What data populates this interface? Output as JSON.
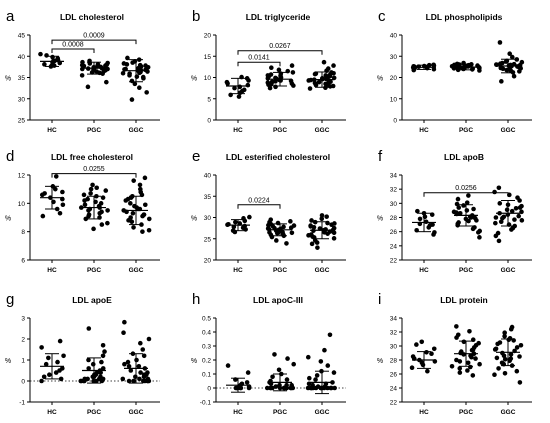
{
  "figure": {
    "group_labels": [
      "HC",
      "PGC",
      "GGC"
    ]
  },
  "chart_data": [
    {
      "type": "scatter",
      "letter": "a",
      "title": "LDL cholesterol",
      "ylabel": "%",
      "ylim": [
        25,
        45
      ],
      "yticks": [
        25,
        30,
        35,
        40,
        45
      ],
      "categories": [
        "HC",
        "PGC",
        "GGC"
      ],
      "summary": [
        {
          "group": "HC",
          "mean": 38.8,
          "sd": 1.2
        },
        {
          "group": "PGC",
          "mean": 37.2,
          "sd": 1.4
        },
        {
          "group": "GGC",
          "mean": 36.6,
          "sd": 2.6
        }
      ],
      "points": [
        [
          38.1,
          39.5,
          38.9,
          37.6,
          40.2,
          38.4,
          39.1,
          37.9,
          39.8,
          38.6,
          40.5,
          37.8,
          38.9
        ],
        [
          37.2,
          36.5,
          38.1,
          37.9,
          36.8,
          35.9,
          37.5,
          38.6,
          36.2,
          37.0,
          37.8,
          36.9,
          38.3,
          37.4,
          35.5,
          36.7,
          37.1,
          38.9,
          37.6,
          36.4,
          37.3,
          32.8,
          33.9,
          38.0,
          37.7,
          36.1,
          37.0,
          38.4
        ],
        [
          36.9,
          35.2,
          38.5,
          37.6,
          34.8,
          36.1,
          39.2,
          37.0,
          33.5,
          36.6,
          38.1,
          35.9,
          37.4,
          32.6,
          36.3,
          37.8,
          34.2,
          36.8,
          38.8,
          35.5,
          37.2,
          36.0,
          29.8,
          31.5,
          39.6,
          36.4,
          37.9,
          35.1,
          38.3,
          36.7
        ]
      ],
      "comparisons": [
        {
          "from": "HC",
          "to": "PGC",
          "p": "0.0008",
          "y": 41.7
        },
        {
          "from": "HC",
          "to": "GGC",
          "p": "0.0009",
          "y": 43.8
        }
      ]
    },
    {
      "type": "scatter",
      "letter": "b",
      "title": "LDL triglyceride",
      "ylabel": "%",
      "ylim": [
        0,
        20
      ],
      "yticks": [
        0,
        5,
        10,
        15,
        20
      ],
      "categories": [
        "HC",
        "PGC",
        "GGC"
      ],
      "summary": [
        {
          "group": "HC",
          "mean": 8.0,
          "sd": 1.8
        },
        {
          "group": "PGC",
          "mean": 9.6,
          "sd": 1.6
        },
        {
          "group": "GGC",
          "mean": 9.5,
          "sd": 1.8
        }
      ],
      "points": [
        [
          6.4,
          8.9,
          7.5,
          9.8,
          5.9,
          8.2,
          10.1,
          7.1,
          8.6,
          6.8,
          9.3,
          7.8,
          5.5
        ],
        [
          9.1,
          10.5,
          8.3,
          11.2,
          9.8,
          8.9,
          10.9,
          9.4,
          7.8,
          10.2,
          9.6,
          8.6,
          11.8,
          9.0,
          10.7,
          8.1,
          9.9,
          12.3,
          9.3,
          8.8,
          10.4,
          9.7,
          7.5,
          11.5,
          8.4,
          10.0,
          9.2,
          12.8
        ],
        [
          9.5,
          8.2,
          10.8,
          9.1,
          11.6,
          8.7,
          10.3,
          9.8,
          7.6,
          12.1,
          9.3,
          10.6,
          8.5,
          9.9,
          11.2,
          7.9,
          10.1,
          9.0,
          13.6,
          8.9,
          10.5,
          9.6,
          12.8,
          8.3,
          9.4,
          10.9,
          8.0,
          9.7,
          11.0,
          7.4
        ]
      ],
      "comparisons": [
        {
          "from": "HC",
          "to": "PGC",
          "p": "0.0141",
          "y": 13.6
        },
        {
          "from": "HC",
          "to": "GGC",
          "p": "0.0267",
          "y": 16.3
        }
      ]
    },
    {
      "type": "scatter",
      "letter": "c",
      "title": "LDL phospholipids",
      "ylabel": "%",
      "ylim": [
        0,
        40
      ],
      "yticks": [
        0,
        10,
        20,
        30,
        40
      ],
      "categories": [
        "HC",
        "PGC",
        "GGC"
      ],
      "summary": [
        {
          "group": "HC",
          "mean": 24.8,
          "sd": 1.0
        },
        {
          "group": "PGC",
          "mean": 24.9,
          "sd": 1.3
        },
        {
          "group": "GGC",
          "mean": 25.4,
          "sd": 3.2
        }
      ],
      "points": [
        [
          24.6,
          25.4,
          23.9,
          25.8,
          24.2,
          25.1,
          26.0,
          24.4,
          25.6,
          23.5,
          24.9,
          25.3,
          24.7
        ],
        [
          24.8,
          25.6,
          24.1,
          25.9,
          24.5,
          25.2,
          26.4,
          23.8,
          25.0,
          24.7,
          26.1,
          24.3,
          25.5,
          23.6,
          24.9,
          26.8,
          25.3,
          24.6,
          23.3,
          25.7,
          24.4,
          25.1,
          26.2,
          24.0,
          25.4,
          24.2,
          25.8,
          24.9
        ],
        [
          25.3,
          27.2,
          23.5,
          26.1,
          24.8,
          28.5,
          22.9,
          25.9,
          26.8,
          24.1,
          29.6,
          25.0,
          23.2,
          26.5,
          24.5,
          27.8,
          25.6,
          18.2,
          20.6,
          36.5,
          31.2,
          24.9,
          26.3,
          23.8,
          27.5,
          25.2,
          22.4,
          26.0,
          24.3,
          25.8
        ]
      ],
      "comparisons": []
    },
    {
      "type": "scatter",
      "letter": "d",
      "title": "LDL free cholesterol",
      "ylabel": "%",
      "ylim": [
        6,
        12
      ],
      "yticks": [
        6,
        8,
        10,
        12
      ],
      "categories": [
        "HC",
        "PGC",
        "GGC"
      ],
      "summary": [
        {
          "group": "HC",
          "mean": 10.4,
          "sd": 0.8
        },
        {
          "group": "PGC",
          "mean": 9.7,
          "sd": 0.8
        },
        {
          "group": "GGC",
          "mean": 9.5,
          "sd": 1.0
        }
      ],
      "points": [
        [
          10.1,
          10.8,
          9.6,
          11.2,
          10.4,
          9.3,
          11.9,
          10.6,
          9.9,
          10.3,
          11.0,
          9.1,
          10.7
        ],
        [
          9.7,
          10.4,
          9.1,
          10.9,
          9.5,
          10.2,
          8.6,
          9.9,
          10.6,
          9.3,
          11.1,
          9.8,
          8.2,
          10.0,
          9.4,
          10.7,
          9.6,
          8.9,
          11.3,
          9.2,
          10.3,
          9.0,
          8.5,
          10.1,
          9.7,
          11.0,
          9.5,
          10.5
        ],
        [
          9.6,
          8.7,
          10.5,
          9.2,
          11.0,
          8.3,
          9.9,
          10.2,
          9.0,
          11.6,
          8.8,
          9.4,
          10.8,
          9.7,
          8.1,
          10.3,
          9.1,
          11.3,
          8.5,
          9.8,
          10.6,
          9.3,
          8.0,
          10.0,
          9.5,
          11.8,
          8.9,
          9.6,
          10.4,
          9.2
        ]
      ],
      "comparisons": [
        {
          "from": "HC",
          "to": "GGC",
          "p": "0.0255",
          "y": 12.1
        }
      ]
    },
    {
      "type": "scatter",
      "letter": "e",
      "title": "LDL esterified cholesterol",
      "ylabel": "%",
      "ylim": [
        20,
        40
      ],
      "yticks": [
        20,
        25,
        30,
        35,
        40
      ],
      "categories": [
        "HC",
        "PGC",
        "GGC"
      ],
      "summary": [
        {
          "group": "HC",
          "mean": 28.2,
          "sd": 1.3
        },
        {
          "group": "PGC",
          "mean": 27.1,
          "sd": 1.4
        },
        {
          "group": "GGC",
          "mean": 27.0,
          "sd": 2.0
        }
      ],
      "points": [
        [
          27.6,
          28.9,
          29.8,
          26.9,
          28.3,
          27.2,
          30.1,
          28.6,
          27.8,
          29.2,
          26.6,
          28.0,
          28.4
        ],
        [
          27.0,
          28.2,
          26.4,
          27.6,
          25.9,
          28.7,
          26.8,
          27.3,
          29.1,
          26.1,
          27.8,
          25.4,
          28.4,
          26.6,
          27.1,
          29.5,
          26.3,
          27.5,
          24.6,
          28.0,
          26.9,
          27.4,
          25.7,
          28.9,
          26.5,
          27.2,
          23.9,
          28.1
        ],
        [
          27.2,
          25.8,
          28.6,
          26.4,
          29.3,
          25.1,
          27.7,
          28.1,
          26.0,
          30.2,
          24.6,
          27.0,
          28.9,
          26.7,
          23.8,
          27.4,
          25.5,
          29.7,
          26.2,
          27.9,
          24.1,
          28.3,
          26.9,
          22.9,
          27.5,
          25.3,
          28.7,
          26.5,
          30.5,
          27.1
        ]
      ],
      "comparisons": [
        {
          "from": "HC",
          "to": "PGC",
          "p": "0.0224",
          "y": 33.0
        }
      ]
    },
    {
      "type": "scatter",
      "letter": "f",
      "title": "LDL apoB",
      "ylabel": "%",
      "ylim": [
        22,
        34
      ],
      "yticks": [
        22,
        24,
        26,
        28,
        30,
        32,
        34
      ],
      "categories": [
        "HC",
        "PGC",
        "GGC"
      ],
      "summary": [
        {
          "group": "HC",
          "mean": 27.3,
          "sd": 1.3
        },
        {
          "group": "PGC",
          "mean": 28.3,
          "sd": 1.5
        },
        {
          "group": "GGC",
          "mean": 28.6,
          "sd": 1.8
        }
      ],
      "points": [
        [
          27.1,
          28.4,
          26.2,
          27.8,
          25.9,
          28.9,
          26.6,
          27.4,
          28.6,
          25.6,
          27.0,
          28.1,
          26.9
        ],
        [
          28.1,
          29.4,
          27.3,
          28.8,
          26.6,
          30.1,
          27.8,
          28.5,
          25.9,
          29.0,
          27.5,
          28.3,
          30.6,
          26.9,
          28.0,
          29.7,
          27.1,
          28.6,
          25.2,
          29.2,
          27.6,
          31.1,
          28.2,
          26.4,
          29.9,
          27.9,
          28.7,
          26.1
        ],
        [
          28.4,
          29.8,
          27.2,
          30.4,
          26.8,
          28.9,
          31.2,
          27.6,
          29.3,
          25.8,
          28.1,
          30.0,
          27.0,
          29.1,
          26.3,
          28.6,
          31.6,
          27.9,
          24.7,
          29.6,
          28.2,
          26.5,
          30.8,
          27.4,
          28.8,
          25.4,
          29.4,
          28.0,
          32.2,
          27.7
        ]
      ],
      "comparisons": [
        {
          "from": "HC",
          "to": "GGC",
          "p": "0.0256",
          "y": 31.5
        }
      ]
    },
    {
      "type": "scatter",
      "letter": "g",
      "title": "LDL apoE",
      "ylabel": "%",
      "ylim": [
        -1,
        3
      ],
      "yticks": [
        -1,
        0,
        1,
        2,
        3
      ],
      "baseline": 0,
      "categories": [
        "HC",
        "PGC",
        "GGC"
      ],
      "summary": [
        {
          "group": "HC",
          "mean": 0.7,
          "sd": 0.6
        },
        {
          "group": "PGC",
          "mean": 0.5,
          "sd": 0.6
        },
        {
          "group": "GGC",
          "mean": 0.6,
          "sd": 0.7
        }
      ],
      "points": [
        [
          0.1,
          0.4,
          1.9,
          0.8,
          1.2,
          0.0,
          0.6,
          1.6,
          0.2,
          0.9,
          1.1,
          0.3,
          0.5
        ],
        [
          0.0,
          0.1,
          0.3,
          0.0,
          0.6,
          0.2,
          1.0,
          0.0,
          0.4,
          2.5,
          0.1,
          0.8,
          0.0,
          0.2,
          1.4,
          0.5,
          0.0,
          0.3,
          0.9,
          0.1,
          0.0,
          1.7,
          0.2,
          0.6,
          0.0,
          0.4,
          1.2,
          0.1
        ],
        [
          0.0,
          0.3,
          1.8,
          0.1,
          0.7,
          2.8,
          0.0,
          0.4,
          1.2,
          0.2,
          2.3,
          0.0,
          0.5,
          1.0,
          0.1,
          0.9,
          0.0,
          1.5,
          0.3,
          0.6,
          0.0,
          2.0,
          0.2,
          0.8,
          0.4,
          0.0,
          1.3,
          0.1,
          0.7,
          0.0
        ]
      ],
      "comparisons": []
    },
    {
      "type": "scatter",
      "letter": "h",
      "title": "LDL apoC-III",
      "ylabel": "%",
      "ylim": [
        -0.1,
        0.5
      ],
      "yticks": [
        -0.1,
        0.0,
        0.1,
        0.2,
        0.3,
        0.4,
        0.5
      ],
      "baseline": 0,
      "categories": [
        "HC",
        "PGC",
        "GGC"
      ],
      "summary": [
        {
          "group": "HC",
          "mean": 0.02,
          "sd": 0.05
        },
        {
          "group": "PGC",
          "mean": 0.04,
          "sd": 0.06
        },
        {
          "group": "GGC",
          "mean": 0.04,
          "sd": 0.08
        }
      ],
      "points": [
        [
          0.0,
          0.01,
          0.0,
          0.16,
          0.03,
          0.0,
          0.06,
          0.0,
          0.02,
          0.11,
          0.0,
          0.04,
          0.0
        ],
        [
          0.0,
          0.02,
          0.0,
          0.08,
          0.0,
          0.24,
          0.01,
          0.0,
          0.05,
          0.0,
          0.17,
          0.03,
          0.0,
          0.1,
          0.0,
          0.02,
          0.0,
          0.06,
          0.0,
          0.13,
          0.01,
          0.0,
          0.04,
          0.0,
          0.21,
          0.0,
          0.02,
          0.0
        ],
        [
          0.0,
          0.03,
          0.0,
          0.12,
          0.0,
          0.38,
          0.01,
          0.0,
          0.06,
          0.0,
          0.22,
          0.02,
          0.0,
          0.09,
          0.0,
          0.16,
          0.0,
          0.04,
          0.0,
          0.27,
          0.0,
          0.01,
          0.0,
          0.07,
          0.0,
          0.19,
          0.0,
          0.03,
          0.0,
          0.11
        ]
      ],
      "comparisons": []
    },
    {
      "type": "scatter",
      "letter": "i",
      "title": "LDL protein",
      "ylabel": "%",
      "ylim": [
        22,
        34
      ],
      "yticks": [
        22,
        24,
        26,
        28,
        30,
        32,
        34
      ],
      "categories": [
        "HC",
        "PGC",
        "GGC"
      ],
      "summary": [
        {
          "group": "HC",
          "mean": 28.0,
          "sd": 1.2
        },
        {
          "group": "PGC",
          "mean": 28.9,
          "sd": 1.8
        },
        {
          "group": "GGC",
          "mean": 29.1,
          "sd": 1.9
        }
      ],
      "points": [
        [
          27.8,
          29.1,
          26.9,
          28.5,
          30.2,
          27.3,
          28.9,
          26.4,
          28.2,
          29.6,
          27.6,
          28.0,
          30.6
        ],
        [
          28.6,
          30.1,
          27.4,
          29.5,
          26.8,
          31.2,
          28.0,
          29.8,
          27.1,
          30.6,
          28.9,
          26.2,
          29.2,
          32.8,
          27.8,
          28.4,
          30.4,
          25.8,
          29.0,
          31.6,
          27.6,
          28.8,
          26.5,
          30.9,
          28.2,
          29.4,
          27.0,
          32.1
        ],
        [
          29.0,
          30.8,
          27.6,
          31.4,
          28.2,
          26.4,
          30.1,
          28.8,
          32.4,
          27.2,
          29.6,
          25.9,
          30.5,
          28.5,
          31.9,
          27.9,
          29.3,
          24.8,
          30.3,
          28.1,
          32.7,
          27.4,
          29.8,
          26.8,
          31.1,
          28.6,
          29.5,
          26.1,
          30.9,
          28.3
        ]
      ],
      "comparisons": []
    }
  ]
}
